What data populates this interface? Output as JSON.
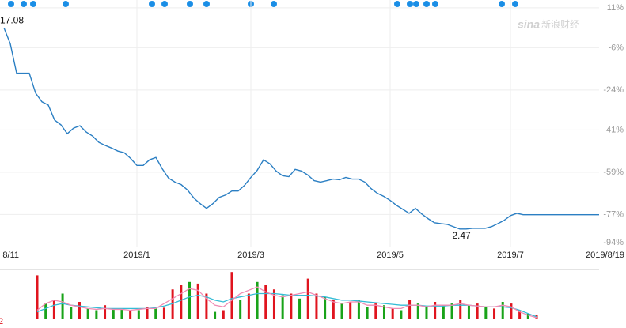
{
  "chart_data": [
    {
      "type": "line",
      "categories": [
        "8/11",
        null,
        null,
        null,
        null,
        null,
        null,
        null,
        null,
        null,
        null,
        null,
        null,
        null,
        null,
        null,
        null,
        null,
        null,
        null,
        null,
        "2019/1",
        null,
        null,
        null,
        null,
        null,
        null,
        null,
        null,
        null,
        null,
        null,
        null,
        null,
        null,
        null,
        null,
        null,
        "2019/3",
        null,
        null,
        null,
        null,
        null,
        null,
        null,
        null,
        null,
        null,
        null,
        null,
        null,
        null,
        null,
        null,
        null,
        null,
        null,
        null,
        null,
        "2019/5",
        null,
        null,
        null,
        null,
        null,
        null,
        null,
        null,
        null,
        null,
        null,
        null,
        null,
        null,
        null,
        null,
        null,
        null,
        "2019/7",
        null,
        null,
        null,
        null,
        null,
        null,
        null,
        null,
        null,
        null,
        null,
        null,
        null,
        "2019/8/19"
      ],
      "series": [
        {
          "color": "#2b7fc3",
          "values": [
            2.5,
            -4.3,
            -16.8,
            -16.8,
            -16.8,
            -25.3,
            -29.0,
            -30.4,
            -36.8,
            -38.8,
            -42.6,
            -40.2,
            -39.2,
            -41.9,
            -43.6,
            -46.3,
            -47.6,
            -48.7,
            -50.0,
            -50.7,
            -53.1,
            -56.1,
            -56.1,
            -53.7,
            -52.7,
            -57.5,
            -61.5,
            -63.2,
            -64.3,
            -66.6,
            -70.0,
            -72.4,
            -74.4,
            -72.4,
            -69.7,
            -68.7,
            -67.0,
            -67.0,
            -64.6,
            -61.2,
            -58.2,
            -53.7,
            -55.4,
            -58.5,
            -60.5,
            -60.9,
            -57.8,
            -58.5,
            -60.2,
            -62.6,
            -63.2,
            -62.6,
            -61.9,
            -62.2,
            -61.2,
            -61.9,
            -61.9,
            -63.2,
            -66.0,
            -68.0,
            -69.3,
            -71.0,
            -73.1,
            -74.8,
            -76.5,
            -74.4,
            -76.8,
            -78.8,
            -80.5,
            -80.9,
            -81.2,
            -82.2,
            -83.2,
            -83.2,
            -82.9,
            -82.9,
            -82.9,
            -82.2,
            -80.9,
            -79.5,
            -77.5,
            -76.5,
            -77.1,
            -77.1,
            -77.1,
            -77.1,
            -77.1,
            -77.1,
            -77.1,
            -77.1,
            -77.1,
            -77.1,
            -77.1,
            -77.1,
            -77.1
          ]
        }
      ],
      "ylim": [
        -91,
        14
      ],
      "yticks": [
        {
          "value": 11,
          "label": "11%"
        },
        {
          "value": -6,
          "label": "-6%"
        },
        {
          "value": -24,
          "label": "-24%"
        },
        {
          "value": -41,
          "label": "-41%"
        },
        {
          "value": -59,
          "label": "-59%"
        },
        {
          "value": -77,
          "label": "-77%"
        },
        {
          "value": -94,
          "label": "-94%"
        }
      ],
      "grid": true,
      "start_label": "17.08",
      "low_label": "2.47",
      "watermark": "新浪财经",
      "logo": "sina"
    },
    {
      "type": "bar",
      "values": [
        52,
        18,
        22,
        30,
        14,
        20,
        12,
        10,
        16,
        12,
        11,
        9,
        10,
        14,
        12,
        13,
        35,
        40,
        44,
        42,
        30,
        8,
        10,
        56,
        22,
        30,
        44,
        40,
        35,
        28,
        30,
        24,
        48,
        30,
        26,
        22,
        18,
        20,
        22,
        14,
        18,
        16,
        12,
        10,
        22,
        18,
        14,
        20,
        16,
        18,
        22,
        16,
        18,
        14,
        12,
        20,
        18,
        10,
        6,
        4
      ],
      "colors": [
        "#e0141e",
        "#19a319",
        "#e0141e",
        "#19a319",
        "#19a319",
        "#e0141e",
        "#19a319",
        "#19a319",
        "#e0141e",
        "#19a319",
        "#19a319",
        "#e0141e",
        "#19a319",
        "#e0141e",
        "#19a319",
        "#e0141e",
        "#e0141e",
        "#e0141e",
        "#19a319",
        "#e0141e",
        "#e0141e",
        "#19a319",
        "#e0141e",
        "#e0141e",
        "#19a319",
        "#e0141e",
        "#19a319",
        "#e0141e",
        "#e0141e",
        "#19a319",
        "#e0141e",
        "#19a319",
        "#e0141e",
        "#e0141e",
        "#19a319",
        "#e0141e",
        "#19a319",
        "#e0141e",
        "#19a319",
        "#19a319",
        "#e0141e",
        "#19a319",
        "#e0141e",
        "#19a319",
        "#e0141e",
        "#19a319",
        "#19a319",
        "#e0141e",
        "#19a319",
        "#19a319",
        "#e0141e",
        "#19a319",
        "#e0141e",
        "#19a319",
        "#e0141e",
        "#19a319",
        "#e0141e",
        "#e0141e",
        "#19a319",
        "#e0141e"
      ],
      "ylim": [
        0,
        60
      ],
      "lines": [
        {
          "color": "#34bcd6",
          "values": [
            8,
            12,
            16,
            18,
            16,
            15,
            14,
            13,
            12,
            12,
            12,
            12,
            12,
            12,
            13,
            15,
            18,
            22,
            26,
            28,
            26,
            22,
            20,
            24,
            26,
            28,
            30,
            30,
            30,
            29,
            28,
            28,
            28,
            27,
            26,
            24,
            22,
            22,
            21,
            20,
            19,
            18,
            17,
            16,
            16,
            16,
            15,
            15,
            15,
            16,
            16,
            16,
            15,
            14,
            14,
            14,
            13,
            10,
            6,
            2
          ]
        },
        {
          "color": "#f08cb4",
          "values": [
            10,
            18,
            22,
            20,
            16,
            14,
            12,
            11,
            12,
            11,
            11,
            10,
            11,
            12,
            12,
            18,
            24,
            30,
            36,
            34,
            24,
            16,
            14,
            22,
            30,
            34,
            38,
            32,
            28,
            26,
            28,
            30,
            32,
            28,
            24,
            20,
            18,
            20,
            20,
            16,
            16,
            14,
            12,
            12,
            16,
            16,
            14,
            16,
            16,
            16,
            18,
            16,
            15,
            14,
            14,
            16,
            14,
            8,
            4,
            1
          ]
        }
      ],
      "corner_label": "2"
    }
  ]
}
